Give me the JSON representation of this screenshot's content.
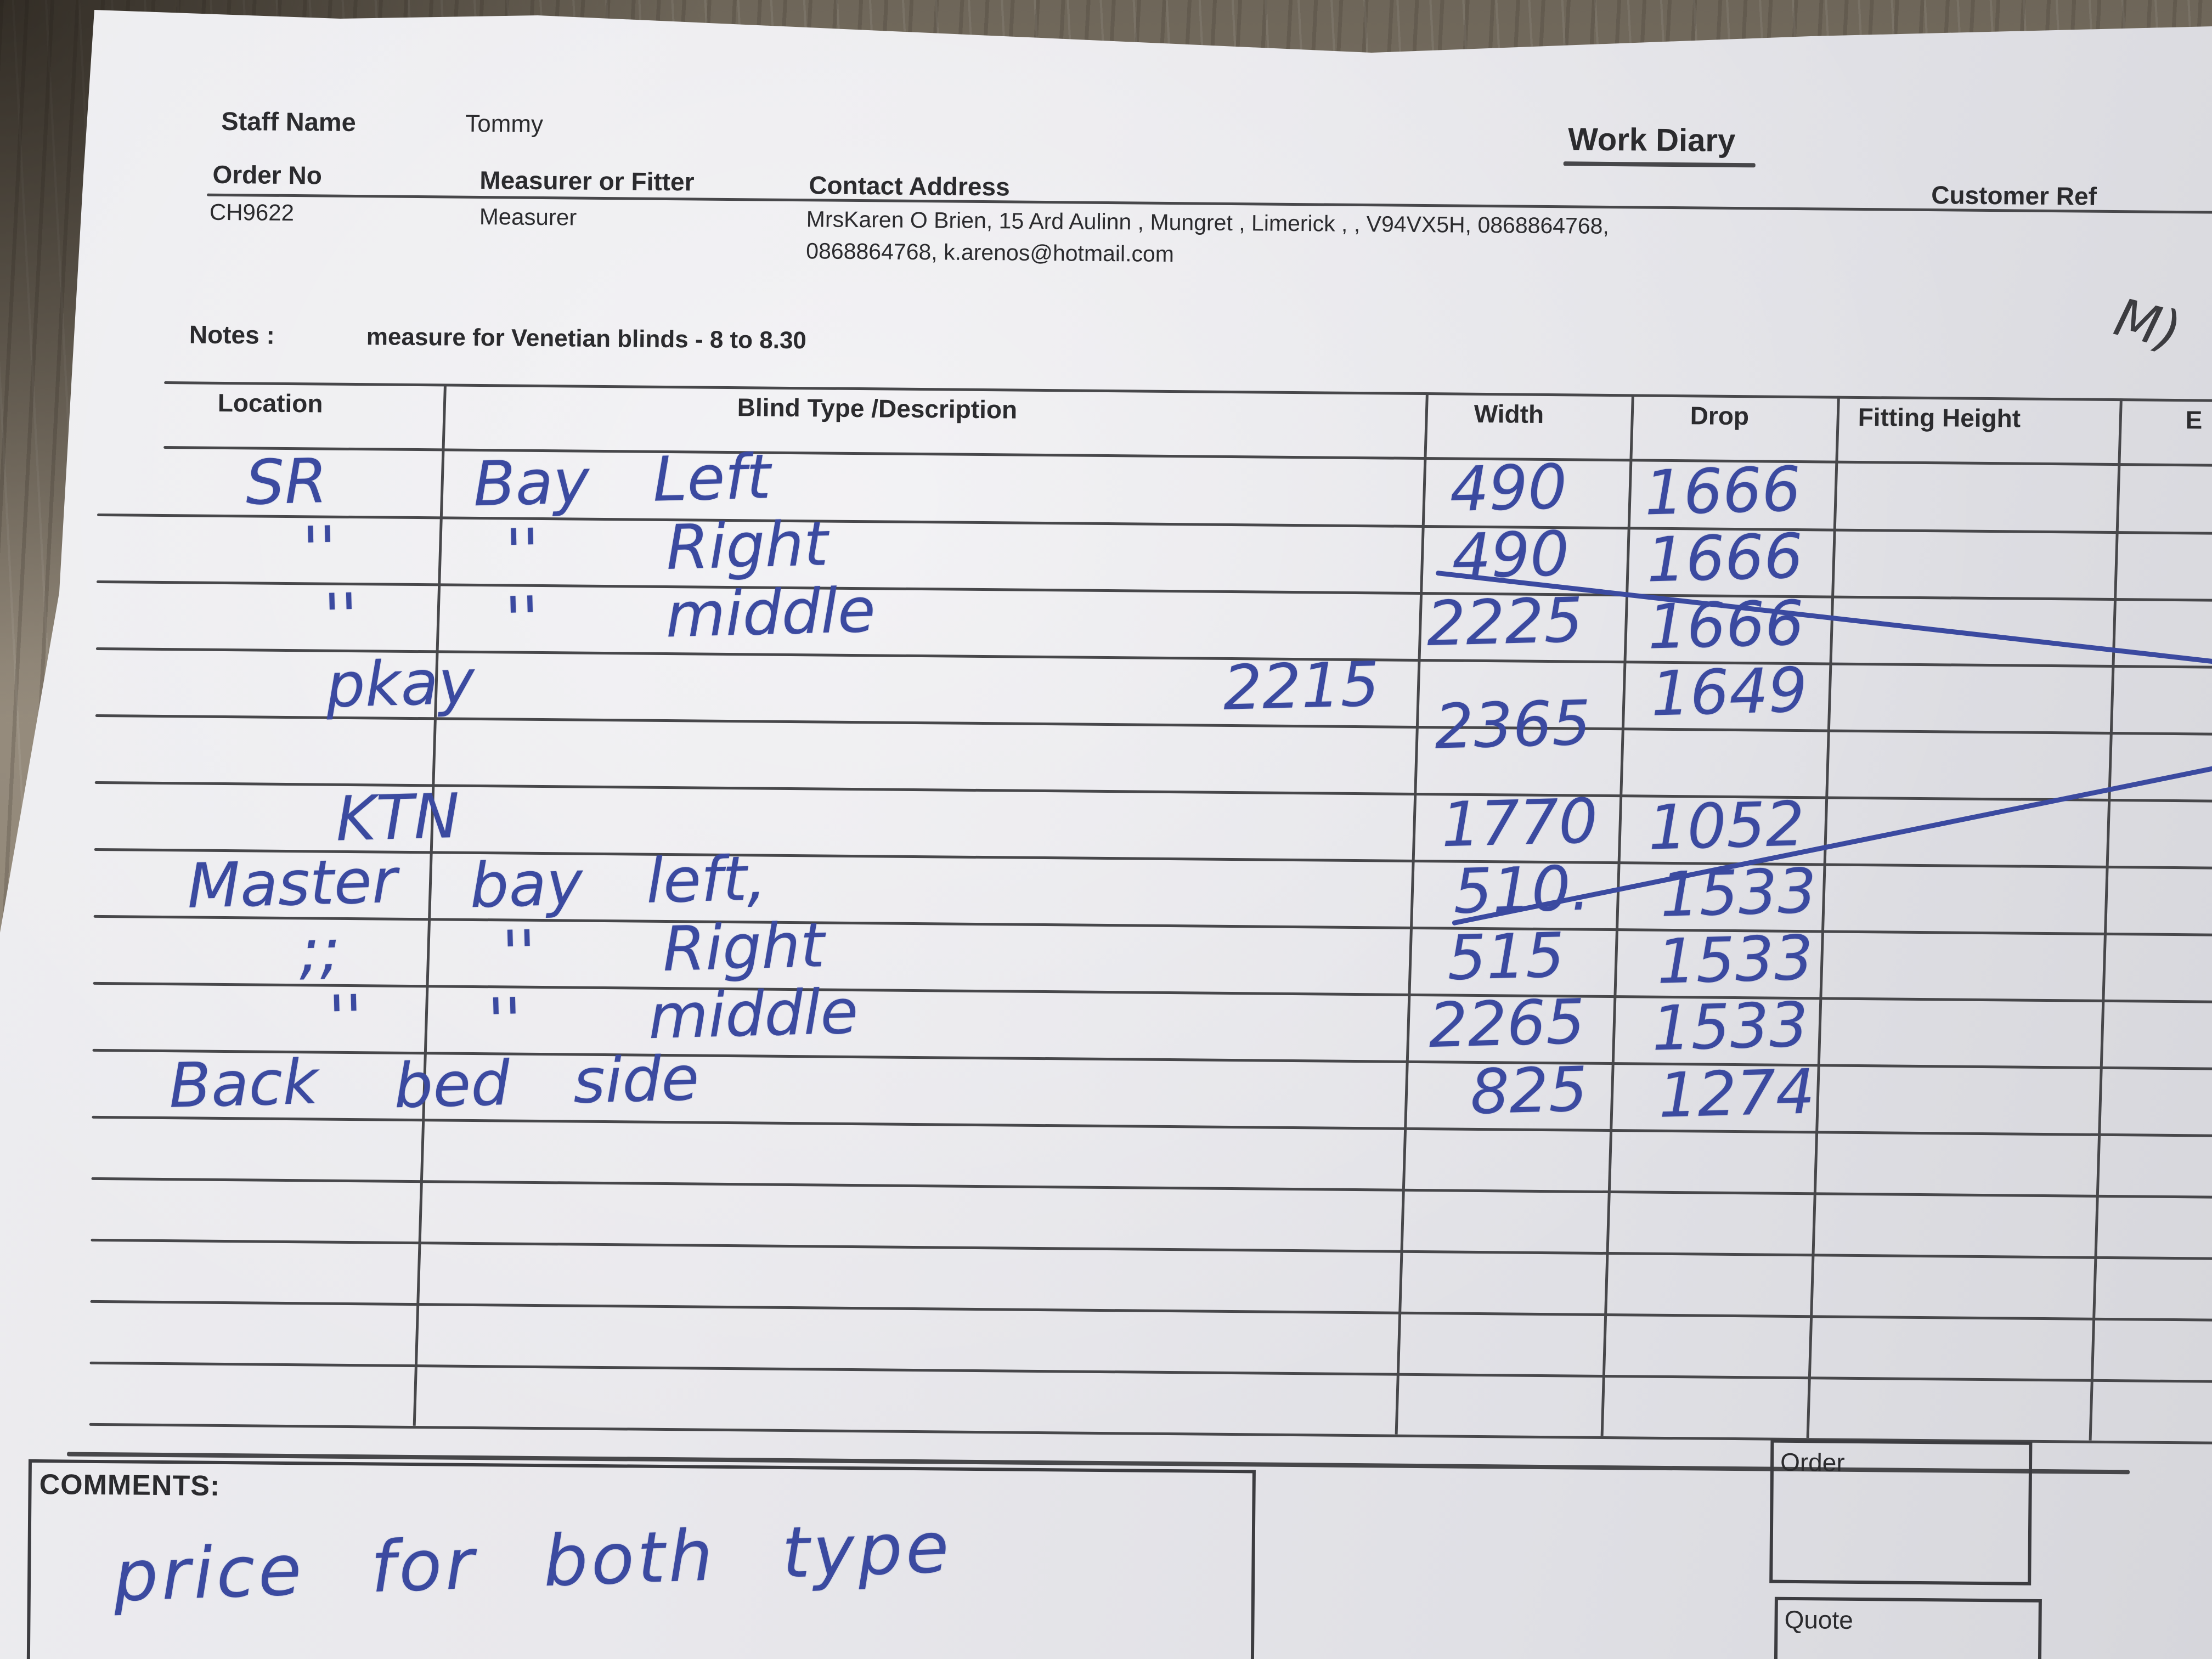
{
  "photo": {
    "surface": "wood-table",
    "annotation_mark": "M)"
  },
  "colors": {
    "ink_blue": "#3b4aa0",
    "print_black": "#2b2b2e",
    "paper": "#e9e8ec",
    "wood": "#877d6f"
  },
  "form": {
    "staff_name_label": "Staff Name",
    "staff_name": "Tommy",
    "title": "Work Diary",
    "order_no_label": "Order No",
    "order_no": "CH9622",
    "measurer_label": "Measurer or Fitter",
    "measurer": "Measurer",
    "contact_label": "Contact Address",
    "contact_line1": "MrsKaren O Brien, 15 Ard Aulinn , Mungret , Limerick , , V94VX5H, 0868864768,",
    "contact_line2": "0868864768, k.arenos@hotmail.com",
    "customer_ref_label": "Customer Ref",
    "notes_label": "Notes :",
    "notes": "measure for Venetian blinds - 8 to 8.30",
    "comments_label": "COMMENTS:",
    "comments_handwritten": "price for both type",
    "order_box_label": "Order",
    "quote_box_label": "Quote"
  },
  "table": {
    "headers": [
      "Location",
      "Blind Type /Description",
      "Width",
      "Drop",
      "Fitting Height",
      "E"
    ],
    "rows": [
      {
        "location": "SR",
        "description": "Bay Left",
        "width": "490",
        "drop": "1666"
      },
      {
        "location": "''",
        "description": "''  Right",
        "width": "490",
        "drop": "1666"
      },
      {
        "location": "''",
        "description": "''  middle",
        "width": "2225",
        "drop": "1666"
      },
      {
        "location": "pkay",
        "description": "",
        "desc_note": "2215",
        "width": "2365",
        "width_struck": true,
        "drop": "1649"
      },
      {},
      {
        "location": "KTN",
        "description": "",
        "width": "1770",
        "drop": "1052"
      },
      {
        "location": "Master",
        "description": "bay left,",
        "width": "510.",
        "drop": "1533"
      },
      {
        "location": ";;",
        "description": "''  Right",
        "width": "515",
        "drop": "1533"
      },
      {
        "location": "''",
        "description": "''  middle",
        "width": "2265",
        "drop": "1533"
      },
      {
        "location": "Back",
        "description": "bed side",
        "width": "825",
        "drop": "1274"
      },
      {},
      {},
      {},
      {},
      {}
    ]
  }
}
